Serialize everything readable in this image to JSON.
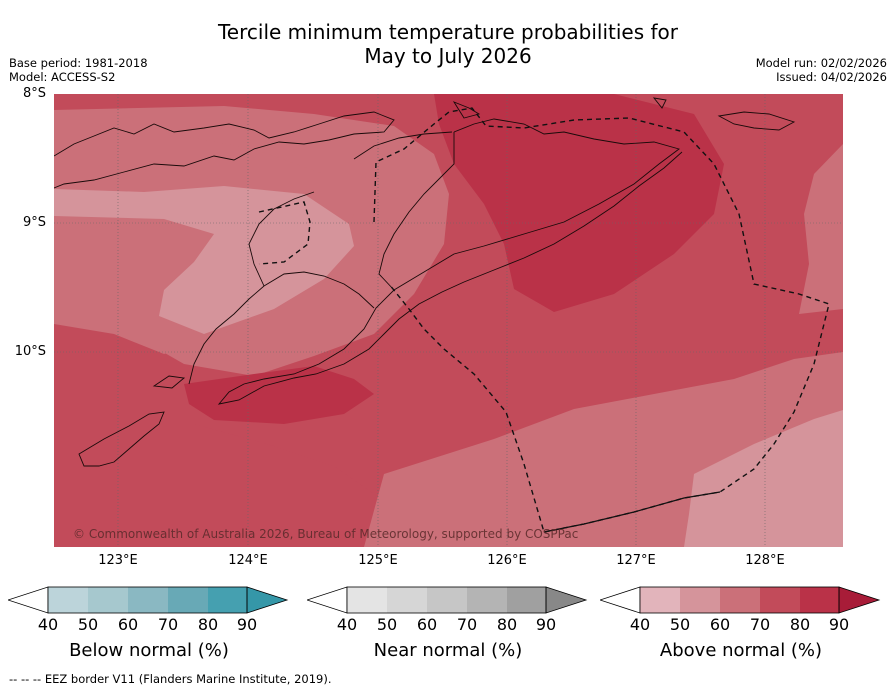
{
  "title_line1": "Tercile minimum temperature probabilities for",
  "title_line2": "May to July 2026",
  "base_period": "Base period: 1981-2018",
  "model": "Model: ACCESS-S2",
  "model_run": "Model run: 02/02/2026",
  "issued": "Issued: 04/02/2026",
  "lat_labels": [
    "8°S",
    "9°S",
    "10°S"
  ],
  "lon_labels": [
    "123°E",
    "124°E",
    "125°E",
    "126°E",
    "127°E",
    "128°E"
  ],
  "copyright": "© Commonwealth of Australia 2026, Bureau of Meteorology, supported by COSPPac",
  "colorbars": [
    {
      "label": "Below normal (%)",
      "ticks": [
        "40",
        "50",
        "60",
        "70",
        "80",
        "90"
      ],
      "colors": [
        "#bcd4da",
        "#a6c8ce",
        "#8ab8c2",
        "#68a9b6",
        "#45a0b0",
        "#3597a8"
      ]
    },
    {
      "label": "Near normal (%)",
      "ticks": [
        "40",
        "50",
        "60",
        "70",
        "80",
        "90"
      ],
      "colors": [
        "#e4e4e4",
        "#d6d6d6",
        "#c6c6c6",
        "#b4b4b4",
        "#a0a0a0",
        "#888888"
      ]
    },
    {
      "label": "Above normal (%)",
      "ticks": [
        "40",
        "50",
        "60",
        "70",
        "80",
        "90"
      ],
      "colors": [
        "#e2b4bb",
        "#d5949b",
        "#cb7079",
        "#c24b5a",
        "#ba3248",
        "#a81c38"
      ]
    }
  ],
  "footnote": "--  --  -- EEZ border V11 (Flanders Marine Institute, 2019)."
}
